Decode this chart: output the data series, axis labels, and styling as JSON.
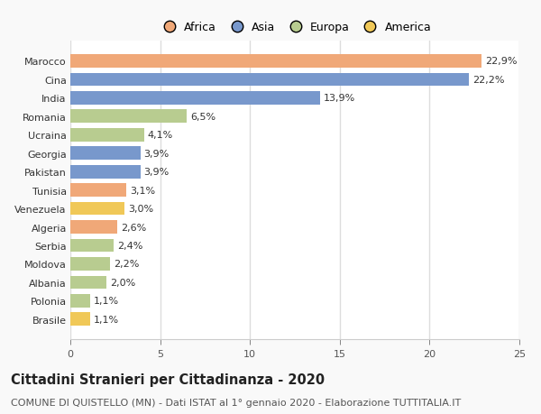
{
  "categories": [
    "Brasile",
    "Polonia",
    "Albania",
    "Moldova",
    "Serbia",
    "Algeria",
    "Venezuela",
    "Tunisia",
    "Pakistan",
    "Georgia",
    "Ucraina",
    "Romania",
    "India",
    "Cina",
    "Marocco"
  ],
  "values": [
    1.1,
    1.1,
    2.0,
    2.2,
    2.4,
    2.6,
    3.0,
    3.1,
    3.9,
    3.9,
    4.1,
    6.5,
    13.9,
    22.2,
    22.9
  ],
  "labels": [
    "1,1%",
    "1,1%",
    "2,0%",
    "2,2%",
    "2,4%",
    "2,6%",
    "3,0%",
    "3,1%",
    "3,9%",
    "3,9%",
    "4,1%",
    "6,5%",
    "13,9%",
    "22,2%",
    "22,9%"
  ],
  "colors": [
    "#f0c858",
    "#b8cc90",
    "#b8cc90",
    "#b8cc90",
    "#b8cc90",
    "#f0a878",
    "#f0c858",
    "#f0a878",
    "#7898cc",
    "#7898cc",
    "#b8cc90",
    "#b8cc90",
    "#7898cc",
    "#7898cc",
    "#f0a878"
  ],
  "legend_labels": [
    "Africa",
    "Asia",
    "Europa",
    "America"
  ],
  "legend_colors": [
    "#f0a878",
    "#7898cc",
    "#b8cc90",
    "#f0c858"
  ],
  "title": "Cittadini Stranieri per Cittadinanza - 2020",
  "subtitle": "COMUNE DI QUISTELLO (MN) - Dati ISTAT al 1° gennaio 2020 - Elaborazione TUTTITALIA.IT",
  "xlim": [
    0,
    25
  ],
  "xticks": [
    0,
    5,
    10,
    15,
    20,
    25
  ],
  "plot_bg": "#ffffff",
  "fig_bg": "#f9f9f9",
  "bar_height": 0.72,
  "title_fontsize": 10.5,
  "subtitle_fontsize": 8,
  "label_fontsize": 8,
  "tick_fontsize": 8,
  "legend_fontsize": 9
}
